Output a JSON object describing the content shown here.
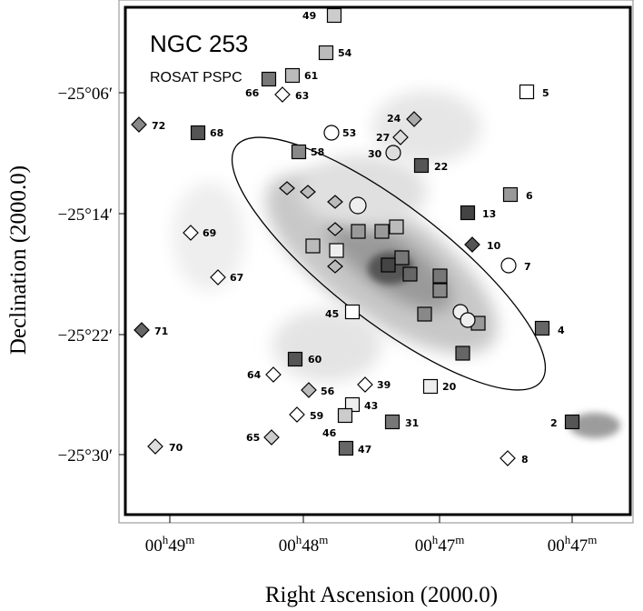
{
  "figure": {
    "title": "NGC 253",
    "subtitle": "ROSAT PSPC",
    "x_axis_label": "Right Ascension (2000.0)",
    "y_axis_label": "Declination (2000.0)",
    "y_tick_labels": [
      "−25°06′",
      "−25°14′",
      "−25°22′",
      "−25°30′"
    ],
    "x_tick_labels": [
      [
        "00",
        "h",
        "49",
        "m"
      ],
      [
        "00",
        "h",
        "48",
        "m"
      ],
      [
        "00",
        "h",
        "47",
        "m"
      ],
      [
        "00",
        "h",
        "47",
        "m"
      ]
    ],
    "sources": [
      {
        "label": "49",
        "marker": "square"
      },
      {
        "label": "54",
        "marker": "square"
      },
      {
        "label": "61",
        "marker": "square"
      },
      {
        "label": "66",
        "marker": "square"
      },
      {
        "label": "63",
        "marker": "diamond"
      },
      {
        "label": "5",
        "marker": "square"
      },
      {
        "label": "72",
        "marker": "diamond"
      },
      {
        "label": "68",
        "marker": "square"
      },
      {
        "label": "53",
        "marker": "circle"
      },
      {
        "label": "24",
        "marker": "diamond"
      },
      {
        "label": "27",
        "marker": "diamond"
      },
      {
        "label": "30",
        "marker": "circle"
      },
      {
        "label": "58",
        "marker": "square"
      },
      {
        "label": "22",
        "marker": "square"
      },
      {
        "label": "6",
        "marker": "square"
      },
      {
        "label": "13",
        "marker": "square"
      },
      {
        "label": "69",
        "marker": "diamond"
      },
      {
        "label": "10",
        "marker": "diamond"
      },
      {
        "label": "7",
        "marker": "circle"
      },
      {
        "label": "67",
        "marker": "diamond"
      },
      {
        "label": "45",
        "marker": "square"
      },
      {
        "label": "71",
        "marker": "diamond"
      },
      {
        "label": "4",
        "marker": "square"
      },
      {
        "label": "60",
        "marker": "square"
      },
      {
        "label": "64",
        "marker": "diamond"
      },
      {
        "label": "39",
        "marker": "diamond"
      },
      {
        "label": "20",
        "marker": "square"
      },
      {
        "label": "56",
        "marker": "diamond"
      },
      {
        "label": "43",
        "marker": "square"
      },
      {
        "label": "59",
        "marker": "diamond"
      },
      {
        "label": "46",
        "marker": "square"
      },
      {
        "label": "31",
        "marker": "square"
      },
      {
        "label": "2",
        "marker": "square"
      },
      {
        "label": "65",
        "marker": "diamond"
      },
      {
        "label": "47",
        "marker": "square"
      },
      {
        "label": "70",
        "marker": "diamond"
      },
      {
        "label": "8",
        "marker": "diamond"
      }
    ]
  }
}
